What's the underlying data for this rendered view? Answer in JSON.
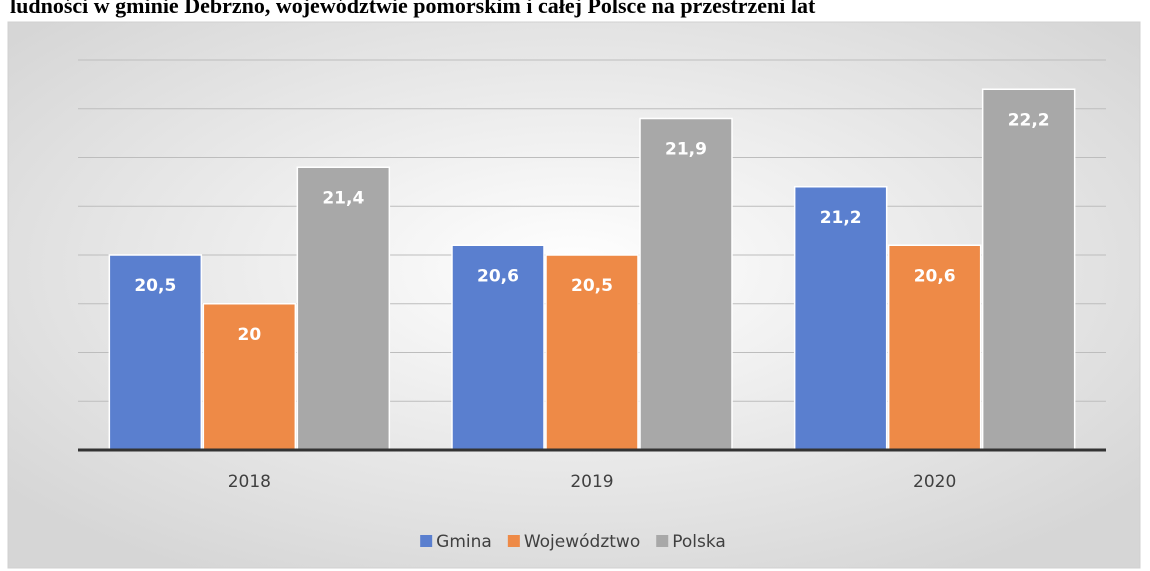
{
  "chart_data": {
    "type": "bar",
    "title": "ludności w gminie Debrzno, województwie pomorskim i całej Polsce na przestrzeni lat",
    "categories": [
      "2018",
      "2019",
      "2020"
    ],
    "series": [
      {
        "name": "Gmina",
        "color": "#5a7fcf",
        "values": [
          20.5,
          20.6,
          21.2
        ],
        "value_labels": [
          "20,5",
          "20,6",
          "21,2"
        ]
      },
      {
        "name": "Województwo",
        "color": "#ee8a47",
        "values": [
          20,
          20.5,
          20.6
        ],
        "value_labels": [
          "20",
          "20,5",
          "20,6"
        ]
      },
      {
        "name": "Polska",
        "color": "#a8a8a8",
        "values": [
          21.4,
          21.9,
          22.2
        ],
        "value_labels": [
          "21,4",
          "21,9",
          "22,2"
        ]
      }
    ],
    "ylim": [
      18.5,
      22.5
    ],
    "yticks": [
      18.5,
      19,
      19.5,
      20,
      20.5,
      21,
      21.5,
      22,
      22.5
    ],
    "grid": true,
    "legend": "bottom"
  }
}
